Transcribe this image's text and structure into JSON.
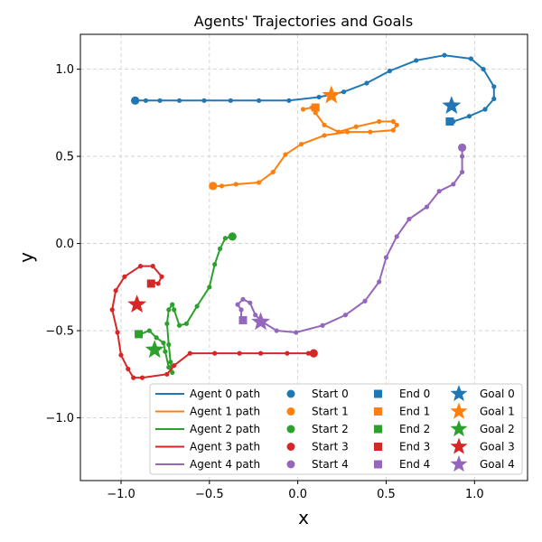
{
  "chart_data": {
    "type": "line",
    "title": "Agents' Trajectories and Goals",
    "xlabel": "x",
    "ylabel": "y",
    "xlim": [
      -1.23,
      1.3
    ],
    "ylim": [
      -1.36,
      1.2
    ],
    "xticks": [
      "−1.0",
      "−0.5",
      "0.0",
      "0.5",
      "1.0"
    ],
    "xtick_values": [
      -1.0,
      -0.5,
      0.0,
      0.5,
      1.0
    ],
    "yticks": [
      "−1.0",
      "−0.5",
      "0.0",
      "0.5",
      "1.0"
    ],
    "ytick_values": [
      -1.0,
      -0.5,
      0.0,
      0.5,
      1.0
    ],
    "grid": true,
    "legend_position": "lower-right",
    "series": [
      {
        "name": "Agent 0 path",
        "start_label": "Start 0",
        "end_label": "End 0",
        "goal_label": "Goal 0",
        "color": "#1f77b4",
        "points": [
          [
            -0.93,
            0.82
          ],
          [
            -0.86,
            0.82
          ],
          [
            -0.78,
            0.82
          ],
          [
            -0.67,
            0.82
          ],
          [
            -0.53,
            0.82
          ],
          [
            -0.38,
            0.82
          ],
          [
            -0.22,
            0.82
          ],
          [
            -0.05,
            0.82
          ],
          [
            0.12,
            0.84
          ],
          [
            0.26,
            0.87
          ],
          [
            0.39,
            0.92
          ],
          [
            0.52,
            0.99
          ],
          [
            0.67,
            1.05
          ],
          [
            0.83,
            1.08
          ],
          [
            0.98,
            1.06
          ],
          [
            1.05,
            1.0
          ],
          [
            1.11,
            0.9
          ],
          [
            1.11,
            0.83
          ],
          [
            1.06,
            0.77
          ],
          [
            0.97,
            0.73
          ],
          [
            0.88,
            0.7
          ]
        ],
        "start": [
          -0.92,
          0.82
        ],
        "end": [
          0.86,
          0.7
        ],
        "goal": [
          0.87,
          0.79
        ]
      },
      {
        "name": "Agent 1 path",
        "start_label": "Start 1",
        "end_label": "End 1",
        "goal_label": "Goal 1",
        "color": "#ff7f0e",
        "points": [
          [
            -0.48,
            0.33
          ],
          [
            -0.43,
            0.33
          ],
          [
            -0.35,
            0.34
          ],
          [
            -0.22,
            0.35
          ],
          [
            -0.14,
            0.41
          ],
          [
            -0.07,
            0.51
          ],
          [
            0.02,
            0.57
          ],
          [
            0.15,
            0.62
          ],
          [
            0.28,
            0.64
          ],
          [
            0.41,
            0.64
          ],
          [
            0.54,
            0.65
          ],
          [
            0.56,
            0.68
          ],
          [
            0.54,
            0.7
          ],
          [
            0.46,
            0.7
          ],
          [
            0.33,
            0.67
          ],
          [
            0.23,
            0.64
          ],
          [
            0.15,
            0.68
          ],
          [
            0.1,
            0.75
          ],
          [
            0.08,
            0.78
          ],
          [
            0.03,
            0.77
          ]
        ],
        "start": [
          -0.48,
          0.33
        ],
        "end": [
          0.1,
          0.78
        ],
        "goal": [
          0.19,
          0.85
        ]
      },
      {
        "name": "Agent 2 path",
        "start_label": "Start 2",
        "end_label": "End 2",
        "goal_label": "Goal 2",
        "color": "#2ca02c",
        "points": [
          [
            -0.38,
            0.04
          ],
          [
            -0.41,
            0.03
          ],
          [
            -0.44,
            -0.03
          ],
          [
            -0.47,
            -0.12
          ],
          [
            -0.5,
            -0.25
          ],
          [
            -0.57,
            -0.36
          ],
          [
            -0.63,
            -0.46
          ],
          [
            -0.67,
            -0.47
          ],
          [
            -0.7,
            -0.38
          ],
          [
            -0.71,
            -0.35
          ],
          [
            -0.73,
            -0.38
          ],
          [
            -0.74,
            -0.46
          ],
          [
            -0.73,
            -0.58
          ],
          [
            -0.72,
            -0.68
          ],
          [
            -0.71,
            -0.74
          ],
          [
            -0.73,
            -0.71
          ],
          [
            -0.75,
            -0.62
          ],
          [
            -0.76,
            -0.57
          ],
          [
            -0.8,
            -0.54
          ],
          [
            -0.84,
            -0.5
          ],
          [
            -0.89,
            -0.52
          ],
          [
            -0.91,
            -0.52
          ]
        ],
        "start": [
          -0.37,
          0.04
        ],
        "end": [
          -0.9,
          -0.52
        ],
        "goal": [
          -0.81,
          -0.61
        ]
      },
      {
        "name": "Agent 3 path",
        "start_label": "Start 3",
        "end_label": "End 3",
        "goal_label": "Goal 3",
        "color": "#d62728",
        "points": [
          [
            0.09,
            -0.63
          ],
          [
            0.06,
            -0.63
          ],
          [
            -0.06,
            -0.63
          ],
          [
            -0.21,
            -0.63
          ],
          [
            -0.33,
            -0.63
          ],
          [
            -0.47,
            -0.63
          ],
          [
            -0.61,
            -0.63
          ],
          [
            -0.7,
            -0.7
          ],
          [
            -0.74,
            -0.75
          ],
          [
            -0.88,
            -0.77
          ],
          [
            -0.93,
            -0.77
          ],
          [
            -0.96,
            -0.72
          ],
          [
            -1.0,
            -0.64
          ],
          [
            -1.02,
            -0.51
          ],
          [
            -1.05,
            -0.38
          ],
          [
            -1.03,
            -0.27
          ],
          [
            -0.98,
            -0.19
          ],
          [
            -0.89,
            -0.13
          ],
          [
            -0.82,
            -0.13
          ],
          [
            -0.77,
            -0.19
          ],
          [
            -0.79,
            -0.23
          ],
          [
            -0.82,
            -0.22
          ]
        ],
        "start": [
          0.09,
          -0.63
        ],
        "end": [
          -0.83,
          -0.23
        ],
        "goal": [
          -0.91,
          -0.35
        ]
      },
      {
        "name": "Agent 4 path",
        "start_label": "Start 4",
        "end_label": "End 4",
        "goal_label": "Goal 4",
        "color": "#9467bd",
        "points": [
          [
            0.93,
            0.55
          ],
          [
            0.93,
            0.5
          ],
          [
            0.93,
            0.41
          ],
          [
            0.88,
            0.34
          ],
          [
            0.8,
            0.3
          ],
          [
            0.73,
            0.21
          ],
          [
            0.63,
            0.14
          ],
          [
            0.56,
            0.04
          ],
          [
            0.5,
            -0.08
          ],
          [
            0.46,
            -0.22
          ],
          [
            0.38,
            -0.33
          ],
          [
            0.27,
            -0.41
          ],
          [
            0.14,
            -0.47
          ],
          [
            -0.01,
            -0.51
          ],
          [
            -0.12,
            -0.5
          ],
          [
            -0.2,
            -0.45
          ],
          [
            -0.24,
            -0.41
          ],
          [
            -0.27,
            -0.34
          ],
          [
            -0.31,
            -0.32
          ],
          [
            -0.34,
            -0.35
          ],
          [
            -0.32,
            -0.38
          ],
          [
            -0.32,
            -0.43
          ]
        ],
        "start": [
          0.93,
          0.55
        ],
        "end": [
          -0.31,
          -0.44
        ],
        "goal": [
          -0.21,
          -0.45
        ]
      }
    ]
  }
}
